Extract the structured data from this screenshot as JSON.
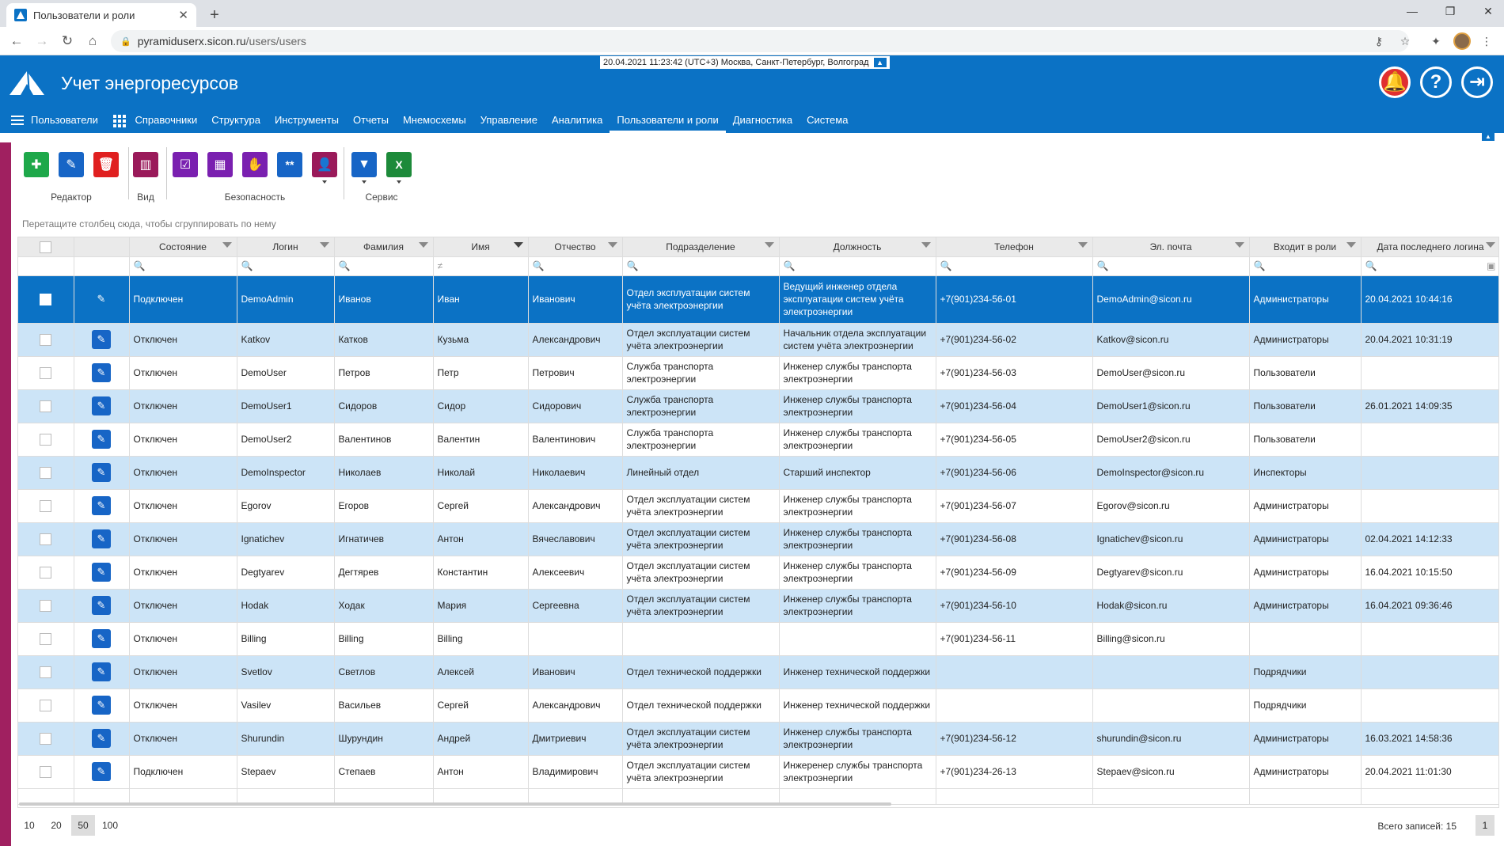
{
  "browser": {
    "tab_title": "Пользователи и роли",
    "url_host": "pyramiduserx.sicon.ru",
    "url_path": "/users/users"
  },
  "header": {
    "datetime": "20.04.2021 11:23:42 (UTC+3) Москва, Санкт-Петербург, Волгоград",
    "app_title": "Учет энергоресурсов",
    "menu": [
      "Пользователи",
      "Справочники",
      "Структура",
      "Инструменты",
      "Отчеты",
      "Мнемосхемы",
      "Управление",
      "Аналитика",
      "Пользователи и роли",
      "Диагностика",
      "Система"
    ],
    "active_menu": "Пользователи и роли"
  },
  "toolbar": {
    "groups": [
      "Редактор",
      "Вид",
      "Безопасность",
      "Сервис"
    ],
    "colors": {
      "add": "#1ea84a",
      "edit": "#1765c6",
      "delete": "#e02020",
      "view": "#9a1a5a",
      "sec": "#7a20b0",
      "sec_key": "#1765c6",
      "filter": "#1765c6",
      "excel": "#1d8a3a"
    }
  },
  "grid": {
    "group_hint": "Перетащите столбец сюда, чтобы сгруппировать по нему",
    "columns": [
      "Состояние",
      "Логин",
      "Фамилия",
      "Имя",
      "Отчество",
      "Подразделение",
      "Должность",
      "Телефон",
      "Эл. почта",
      "Входит в роли",
      "Дата последнего логина"
    ],
    "name_filter_symbol": "≠",
    "rows": [
      {
        "state": "Подключен",
        "login": "DemoAdmin",
        "last": "Иванов",
        "first": "Иван",
        "middle": "Иванович",
        "dept": "Отдел эксплуатации систем учёта электроэнергии",
        "pos": "Ведущий инженер отдела эксплуатации систем учёта электроэнергии",
        "phone": "+7(901)234-56-01",
        "email": "DemoAdmin@sicon.ru",
        "roles": "Администраторы",
        "lastlogin": "20.04.2021 10:44:16"
      },
      {
        "state": "Отключен",
        "login": "Katkov",
        "last": "Катков",
        "first": "Кузьма",
        "middle": "Александрович",
        "dept": "Отдел эксплуатации систем учёта электроэнергии",
        "pos": "Начальник отдела эксплуатации систем учёта электроэнергии",
        "phone": "+7(901)234-56-02",
        "email": "Katkov@sicon.ru",
        "roles": "Администраторы",
        "lastlogin": "20.04.2021 10:31:19"
      },
      {
        "state": "Отключен",
        "login": "DemoUser",
        "last": "Петров",
        "first": "Петр",
        "middle": "Петрович",
        "dept": "Служба транспорта электроэнергии",
        "pos": "Инженер службы транспорта электроэнергии",
        "phone": "+7(901)234-56-03",
        "email": "DemoUser@sicon.ru",
        "roles": "Пользователи",
        "lastlogin": ""
      },
      {
        "state": "Отключен",
        "login": "DemoUser1",
        "last": "Сидоров",
        "first": "Сидор",
        "middle": "Сидорович",
        "dept": "Служба транспорта электроэнергии",
        "pos": "Инженер службы транспорта электроэнергии",
        "phone": "+7(901)234-56-04",
        "email": "DemoUser1@sicon.ru",
        "roles": "Пользователи",
        "lastlogin": "26.01.2021 14:09:35"
      },
      {
        "state": "Отключен",
        "login": "DemoUser2",
        "last": "Валентинов",
        "first": "Валентин",
        "middle": "Валентинович",
        "dept": "Служба транспорта электроэнергии",
        "pos": "Инженер службы транспорта электроэнергии",
        "phone": "+7(901)234-56-05",
        "email": "DemoUser2@sicon.ru",
        "roles": "Пользователи",
        "lastlogin": ""
      },
      {
        "state": "Отключен",
        "login": "DemoInspector",
        "last": "Николаев",
        "first": "Николай",
        "middle": "Николаевич",
        "dept": "Линейный отдел",
        "pos": "Старший инспектор",
        "phone": "+7(901)234-56-06",
        "email": "DemoInspector@sicon.ru",
        "roles": "Инспекторы",
        "lastlogin": ""
      },
      {
        "state": "Отключен",
        "login": "Egorov",
        "last": "Егоров",
        "first": "Сергей",
        "middle": "Александрович",
        "dept": "Отдел эксплуатации систем учёта электроэнергии",
        "pos": "Инженер службы транспорта электроэнергии",
        "phone": "+7(901)234-56-07",
        "email": "Egorov@sicon.ru",
        "roles": "Администраторы",
        "lastlogin": ""
      },
      {
        "state": "Отключен",
        "login": "Ignatichev",
        "last": "Игнатичев",
        "first": "Антон",
        "middle": "Вячеславович",
        "dept": "Отдел эксплуатации систем учёта электроэнергии",
        "pos": "Инженер службы транспорта электроэнергии",
        "phone": "+7(901)234-56-08",
        "email": "Ignatichev@sicon.ru",
        "roles": "Администраторы",
        "lastlogin": "02.04.2021 14:12:33"
      },
      {
        "state": "Отключен",
        "login": "Degtyarev",
        "last": "Дегтярев",
        "first": "Константин",
        "middle": "Алексеевич",
        "dept": "Отдел эксплуатации систем учёта электроэнергии",
        "pos": "Инженер службы транспорта электроэнергии",
        "phone": "+7(901)234-56-09",
        "email": "Degtyarev@sicon.ru",
        "roles": "Администраторы",
        "lastlogin": "16.04.2021 10:15:50"
      },
      {
        "state": "Отключен",
        "login": "Hodak",
        "last": "Ходак",
        "first": "Мария",
        "middle": "Сергеевна",
        "dept": "Отдел эксплуатации систем учёта электроэнергии",
        "pos": "Инженер службы транспорта электроэнергии",
        "phone": "+7(901)234-56-10",
        "email": "Hodak@sicon.ru",
        "roles": "Администраторы",
        "lastlogin": "16.04.2021 09:36:46"
      },
      {
        "state": "Отключен",
        "login": "Billing",
        "last": "Billing",
        "first": "Billing",
        "middle": "",
        "dept": "",
        "pos": "",
        "phone": "+7(901)234-56-11",
        "email": "Billing@sicon.ru",
        "roles": "",
        "lastlogin": ""
      },
      {
        "state": "Отключен",
        "login": "Svetlov",
        "last": "Светлов",
        "first": "Алексей",
        "middle": "Иванович",
        "dept": "Отдел технической поддержки",
        "pos": "Инженер технической поддержки",
        "phone": "",
        "email": "",
        "roles": "Подрядчики",
        "lastlogin": ""
      },
      {
        "state": "Отключен",
        "login": "Vasilev",
        "last": "Васильев",
        "first": "Сергей",
        "middle": "Александрович",
        "dept": "Отдел технической поддержки",
        "pos": "Инженер технической поддержки",
        "phone": "",
        "email": "",
        "roles": "Подрядчики",
        "lastlogin": ""
      },
      {
        "state": "Отключен",
        "login": "Shurundin",
        "last": "Шурундин",
        "first": "Андрей",
        "middle": "Дмитриевич",
        "dept": "Отдел эксплуатации систем учёта электроэнергии",
        "pos": "Инженер службы транспорта электроэнергии",
        "phone": "+7(901)234-56-12",
        "email": "shurundin@sicon.ru",
        "roles": "Администраторы",
        "lastlogin": "16.03.2021 14:58:36"
      },
      {
        "state": "Подключен",
        "login": "Stepaev",
        "last": "Степаев",
        "first": "Антон",
        "middle": "Владимирович",
        "dept": "Отдел эксплуатации систем учёта электроэнергии",
        "pos": "Инжеренер службы транспорта электроэнергии",
        "phone": "+7(901)234-26-13",
        "email": "Stepaev@sicon.ru",
        "roles": "Администраторы",
        "lastlogin": "20.04.2021 11:01:30"
      }
    ]
  },
  "pager": {
    "sizes": [
      "10",
      "20",
      "50",
      "100"
    ],
    "active_size": "50",
    "total": "Всего записей: 15",
    "page": "1"
  }
}
